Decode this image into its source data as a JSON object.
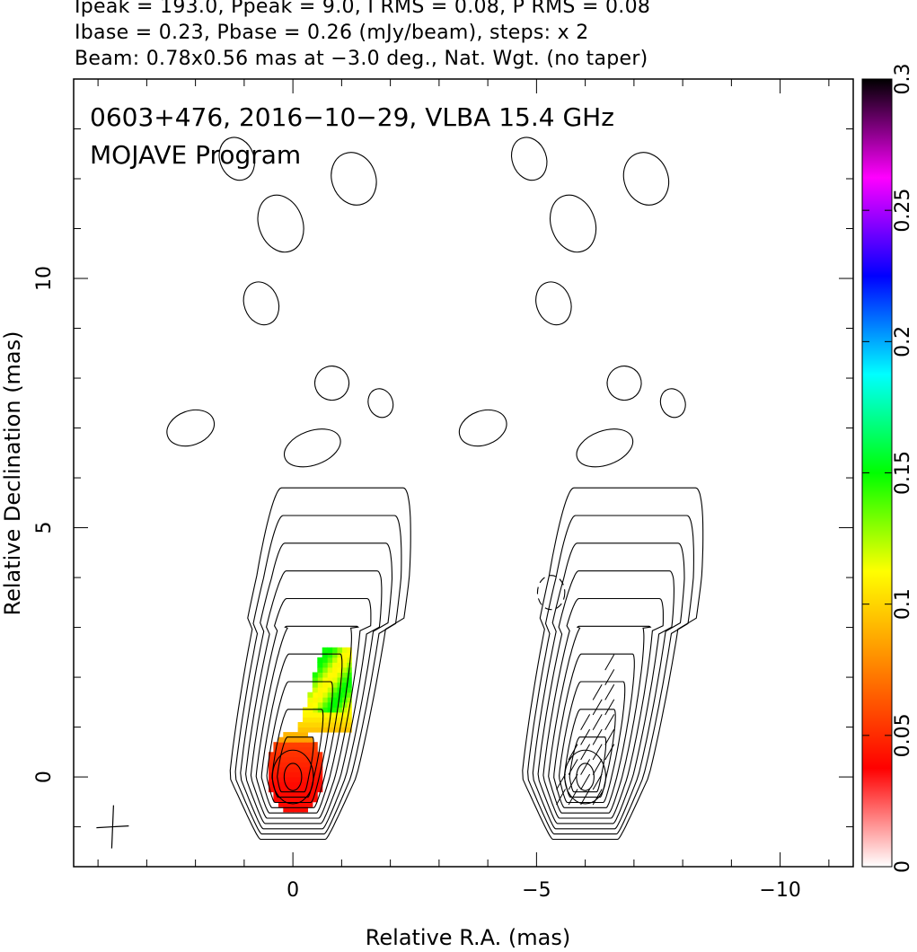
{
  "header": {
    "line1": "Ipeak = 193.0, Ppeak = 9.0, I RMS = 0.08, P RMS = 0.08",
    "line2": "Ibase = 0.23, Pbase = 0.26 (mJy/beam), steps: x 2",
    "line3": "Beam: 0.78x0.56 mas at −3.0 deg., Nat. Wgt. (no taper)"
  },
  "chart_data": {
    "type": "heatmap",
    "annotation_line1": "0603+476, 2016−10−29, VLBA 15.4 GHz",
    "annotation_line2": "MOJAVE Program",
    "xlabel": "Relative R.A. (mas)",
    "ylabel": "Relative Declination (mas)",
    "xlim": [
      4.5,
      -11.5
    ],
    "ylim": [
      -1.8,
      14
    ],
    "x_ticks": [
      {
        "value": 0,
        "label": "0"
      },
      {
        "value": -5,
        "label": "−5"
      },
      {
        "value": -10,
        "label": "−10"
      }
    ],
    "y_ticks": [
      {
        "value": 0,
        "label": "0"
      },
      {
        "value": 5,
        "label": "5"
      },
      {
        "value": 10,
        "label": "10"
      }
    ],
    "colorbar": {
      "range": [
        0,
        0.3
      ],
      "ticks": [
        {
          "value": 0,
          "label": "0"
        },
        {
          "value": 0.05,
          "label": "0.05"
        },
        {
          "value": 0.1,
          "label": "0.1"
        },
        {
          "value": 0.15,
          "label": "0.15"
        },
        {
          "value": 0.2,
          "label": "0.2"
        },
        {
          "value": 0.25,
          "label": "0.25"
        },
        {
          "value": 0.3,
          "label": "0.3"
        }
      ],
      "colors": [
        "#ffffff",
        "#ff0000",
        "#ff8000",
        "#ffff00",
        "#00ff00",
        "#00ffff",
        "#0000ff",
        "#ff00ff",
        "#000000"
      ]
    },
    "panels": [
      {
        "name": "left",
        "x_offset": 0,
        "has_color": true
      },
      {
        "name": "right",
        "x_offset": -6,
        "has_color": false
      }
    ],
    "core": {
      "x": 0,
      "y": 0
    },
    "blobs": [
      {
        "x": 1.15,
        "y": 12.4,
        "rx": 0.35,
        "ry": 0.45
      },
      {
        "x": -1.25,
        "y": 12.0,
        "rx": 0.45,
        "ry": 0.55
      },
      {
        "x": 0.25,
        "y": 11.1,
        "rx": 0.45,
        "ry": 0.6
      },
      {
        "x": 0.65,
        "y": 9.5,
        "rx": 0.35,
        "ry": 0.45
      },
      {
        "x": -0.8,
        "y": 7.9,
        "rx": 0.35,
        "ry": 0.35
      },
      {
        "x": 2.1,
        "y": 7.0,
        "rx": 0.5,
        "ry": 0.35
      },
      {
        "x": -0.4,
        "y": 6.6,
        "rx": 0.6,
        "ry": 0.35
      },
      {
        "x": -1.8,
        "y": 7.5,
        "rx": 0.25,
        "ry": 0.3
      }
    ]
  }
}
